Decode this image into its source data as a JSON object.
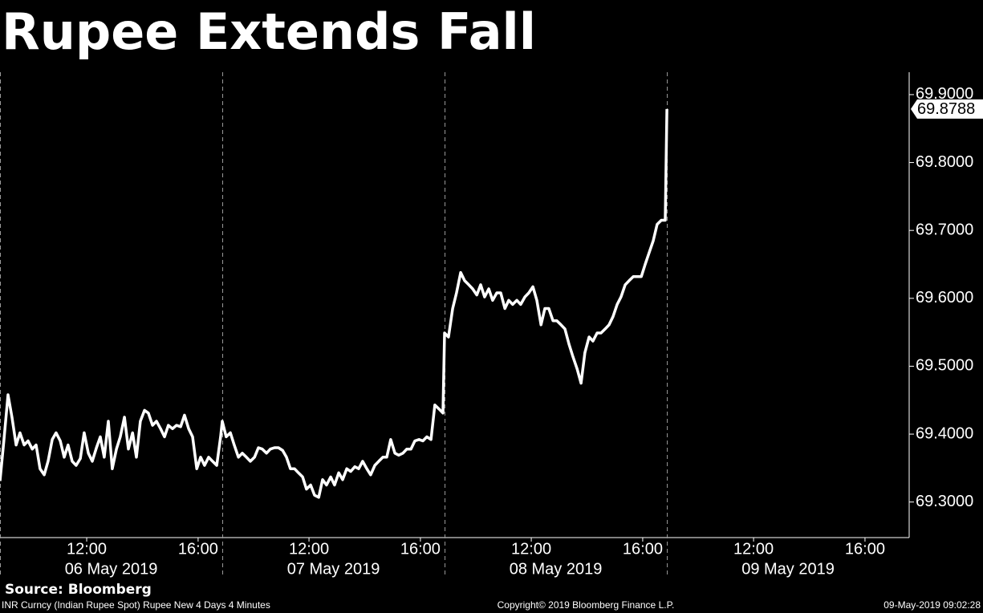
{
  "chart_data": {
    "type": "line",
    "title": "Rupee Extends Fall",
    "source": "Source: Bloomberg",
    "footer_left": "INR Curncy (Indian Rupee Spot) Rupee New 4 Days 4 Minutes",
    "footer_center": "Copyright© 2019 Bloomberg Finance L.P.",
    "footer_right": "09-May-2019 09:02:28",
    "x": [
      0.0,
      0.14,
      0.29,
      0.43,
      0.58,
      0.72,
      0.87,
      1.01,
      1.16,
      1.3,
      1.44,
      1.59,
      1.73,
      1.88,
      2.02,
      2.17,
      2.31,
      2.45,
      2.6,
      2.74,
      2.89,
      3.03,
      3.18,
      3.32,
      3.47,
      3.61,
      3.75,
      3.9,
      4.04,
      4.19,
      4.33,
      4.48,
      4.62,
      4.77,
      4.91,
      5.05,
      5.2,
      5.34,
      5.49,
      5.63,
      5.78,
      5.92,
      6.06,
      6.21,
      6.35,
      6.5,
      6.64,
      6.79,
      6.93,
      7.08,
      7.22,
      7.36,
      7.51,
      7.65,
      7.8,
      7.94,
      8.0,
      8.14,
      8.29,
      8.43,
      8.58,
      8.72,
      8.87,
      9.01,
      9.16,
      9.3,
      9.44,
      9.59,
      9.73,
      9.88,
      10.02,
      10.17,
      10.31,
      10.45,
      10.6,
      10.74,
      10.89,
      11.03,
      11.18,
      11.32,
      11.47,
      11.61,
      11.75,
      11.9,
      12.04,
      12.19,
      12.33,
      12.48,
      12.62,
      12.77,
      12.91,
      13.05,
      13.2,
      13.34,
      13.49,
      13.63,
      13.78,
      13.92,
      14.06,
      14.21,
      14.35,
      14.5,
      14.64,
      14.79,
      14.93,
      15.08,
      15.22,
      15.36,
      15.51,
      15.65,
      15.8,
      15.94,
      16.0,
      16.14,
      16.29,
      16.43,
      16.58,
      16.72,
      16.87,
      17.01,
      17.16,
      17.3,
      17.44,
      17.59,
      17.73,
      17.88,
      18.02,
      18.17,
      18.31,
      18.45,
      18.6,
      18.74,
      18.89,
      19.03,
      19.18,
      19.32,
      19.47,
      19.61,
      19.75,
      19.9,
      20.04,
      20.19,
      20.33,
      20.48,
      20.62,
      20.77,
      20.91,
      21.05,
      21.2,
      21.34,
      21.49,
      21.63,
      21.78,
      21.92,
      22.06,
      22.21,
      22.35,
      22.5,
      22.64,
      22.79,
      22.93,
      23.08,
      23.22,
      23.36,
      23.51,
      23.65,
      23.8,
      23.94,
      24.0
    ],
    "series": [
      {
        "color": "#ffffff",
        "values": [
          69.331,
          69.39,
          69.458,
          69.425,
          69.384,
          69.402,
          69.384,
          69.39,
          69.378,
          69.384,
          69.349,
          69.34,
          69.36,
          69.392,
          69.402,
          69.39,
          69.366,
          69.384,
          69.36,
          69.354,
          69.364,
          69.402,
          69.372,
          69.36,
          69.38,
          69.396,
          69.366,
          69.419,
          69.349,
          69.378,
          69.396,
          69.425,
          69.378,
          69.402,
          69.366,
          69.419,
          69.435,
          69.431,
          69.413,
          69.419,
          69.408,
          69.396,
          69.413,
          69.408,
          69.413,
          69.411,
          69.428,
          69.408,
          69.396,
          69.349,
          69.366,
          69.354,
          69.366,
          69.36,
          69.354,
          69.396,
          69.419,
          69.396,
          69.402,
          69.384,
          69.366,
          69.372,
          69.366,
          69.36,
          69.366,
          69.38,
          69.378,
          69.372,
          69.378,
          69.38,
          69.38,
          69.376,
          69.366,
          69.349,
          69.349,
          69.343,
          69.337,
          69.319,
          69.325,
          69.31,
          69.307,
          69.333,
          69.325,
          69.337,
          69.325,
          69.343,
          69.333,
          69.349,
          69.345,
          69.352,
          69.349,
          69.36,
          69.349,
          69.34,
          69.354,
          69.36,
          69.366,
          69.366,
          69.392,
          69.372,
          69.369,
          69.372,
          69.378,
          69.378,
          69.39,
          69.392,
          69.39,
          69.396,
          69.392,
          69.443,
          69.437,
          69.431,
          69.549,
          69.543,
          69.585,
          69.608,
          69.638,
          69.626,
          69.62,
          69.614,
          69.605,
          69.62,
          69.602,
          69.614,
          69.597,
          69.608,
          69.608,
          69.585,
          69.597,
          69.591,
          69.597,
          69.591,
          69.602,
          69.608,
          69.617,
          69.597,
          69.561,
          69.585,
          69.585,
          69.567,
          69.567,
          69.561,
          69.555,
          69.532,
          69.514,
          69.496,
          69.475,
          69.52,
          69.543,
          69.537,
          69.549,
          69.549,
          69.555,
          69.561,
          69.573,
          69.591,
          69.602,
          69.62,
          69.626,
          69.632,
          69.632,
          69.632,
          69.65,
          69.667,
          69.685,
          69.709,
          69.715,
          69.715,
          69.8788
        ]
      }
    ],
    "xlim": [
      0,
      32.72
    ],
    "xticks": [
      {
        "value": 3.12,
        "label": "12:00"
      },
      {
        "value": 7.13,
        "label": "16:00"
      },
      {
        "value": 11.12,
        "label": "12:00"
      },
      {
        "value": 15.13,
        "label": "16:00"
      },
      {
        "value": 19.12,
        "label": "12:00"
      },
      {
        "value": 23.13,
        "label": "16:00"
      },
      {
        "value": 27.12,
        "label": "12:00"
      },
      {
        "value": 31.13,
        "label": "16:00"
      }
    ],
    "date_ticks": [
      {
        "value": 0,
        "label": "06 May 2019"
      },
      {
        "value": 8,
        "label": "07 May 2019"
      },
      {
        "value": 16,
        "label": "08 May 2019"
      },
      {
        "value": 24,
        "label": "09 May 2019"
      }
    ],
    "ylim": [
      69.25,
      69.933
    ],
    "yticks": [
      {
        "value": 69.3,
        "label": "69.3000"
      },
      {
        "value": 69.4,
        "label": "69.4000"
      },
      {
        "value": 69.5,
        "label": "69.5000"
      },
      {
        "value": 69.6,
        "label": "69.6000"
      },
      {
        "value": 69.7,
        "label": "69.7000"
      },
      {
        "value": 69.8,
        "label": "69.8000"
      },
      {
        "value": 69.9,
        "label": "69.9000"
      }
    ],
    "y_axis_side": "right"
  }
}
